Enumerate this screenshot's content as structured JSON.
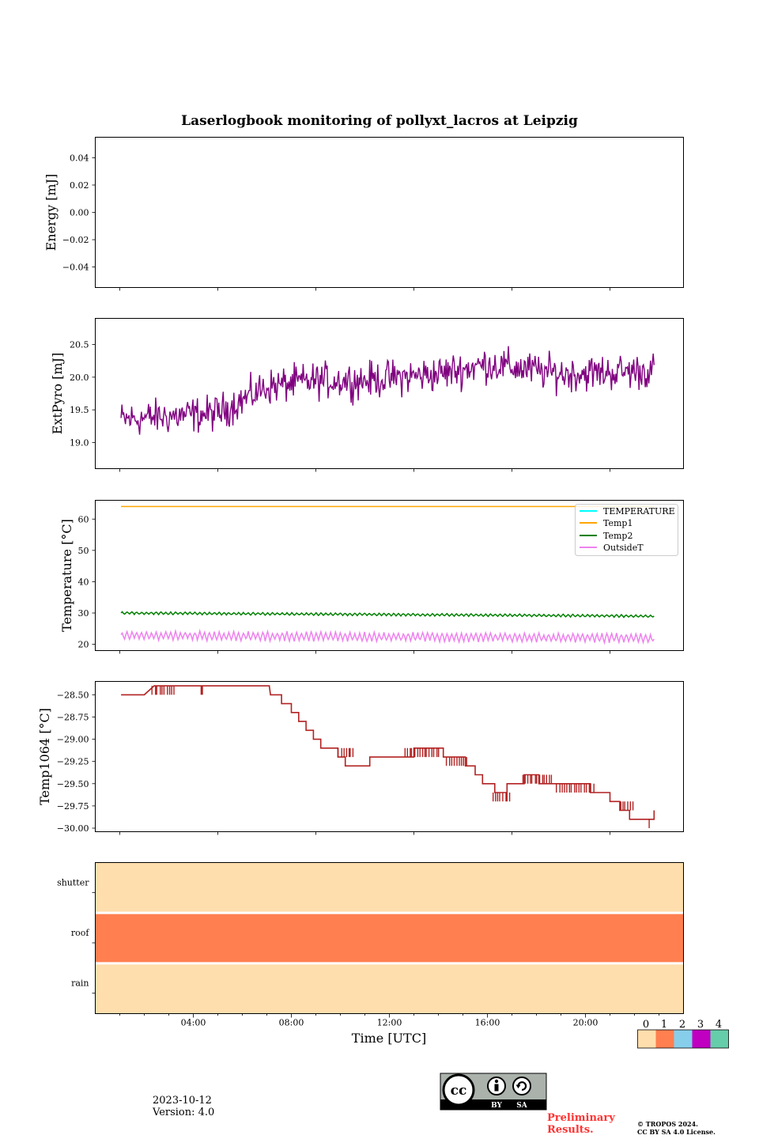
{
  "figure_title": "Laserlogbook monitoring of pollyxt_lacros at Leipzig",
  "footer": {
    "date": "2023-10-12",
    "version": "Version: 4.0",
    "preliminary_line1": "Preliminary",
    "preliminary_line2": "Results.",
    "copyright_line1": "© TROPOS 2024.",
    "copyright_line2": "CC BY SA 4.0 License.",
    "license_badge": {
      "cc": "cc",
      "by": "BY",
      "sa": "SA"
    }
  },
  "colors": {
    "extpyro": "#800080",
    "temperature": "#00ffff",
    "temp1": "#ffa500",
    "temp2": "#008000",
    "outsideT": "#ee82ee",
    "temp1064": "#b22222",
    "status": [
      "#ffdead",
      "#ff7f50",
      "#87ceeb",
      "#c000c0",
      "#66cdaa"
    ],
    "prelim": "#ff3333"
  },
  "chart_data": [
    {
      "type": "line",
      "panel": "energy",
      "ylabel": "Energy [mJ]",
      "ylim": [
        -0.055,
        0.055
      ],
      "yticks": [
        -0.04,
        -0.02,
        0.0,
        0.02,
        0.04
      ],
      "ytick_labels": [
        "−0.04",
        "−0.02",
        "0.00",
        "0.02",
        "0.04"
      ],
      "series": []
    },
    {
      "type": "line",
      "panel": "extpyro",
      "ylabel": "ExtPyro [mJ]",
      "xlim": [
        0.0,
        24.0
      ],
      "ylim": [
        18.6,
        20.9
      ],
      "yticks": [
        19.0,
        19.5,
        20.0,
        20.5
      ],
      "ytick_labels": [
        "19.0",
        "19.5",
        "20.0",
        "20.5"
      ],
      "series": [
        {
          "x_range": [
            1.05,
            22.8
          ],
          "trend": [
            [
              1.05,
              19.35
            ],
            [
              3.0,
              19.4
            ],
            [
              5.0,
              19.45
            ],
            [
              7.0,
              19.85
            ],
            [
              9.0,
              19.95
            ],
            [
              11.0,
              19.95
            ],
            [
              14.0,
              20.05
            ],
            [
              16.0,
              20.2
            ],
            [
              19.0,
              20.05
            ],
            [
              22.8,
              20.1
            ]
          ],
          "noise_amplitude": 0.3,
          "points": 600
        }
      ]
    },
    {
      "type": "line",
      "panel": "temperature",
      "ylabel": "Temperature [°C]",
      "xlim": [
        0.0,
        24.0
      ],
      "ylim": [
        18,
        66
      ],
      "yticks": [
        20,
        30,
        40,
        50,
        60
      ],
      "ytick_labels": [
        "20",
        "30",
        "40",
        "50",
        "60"
      ],
      "legend_position": "upper-right",
      "series": [
        {
          "name": "TEMPERATURE",
          "x": [],
          "y": []
        },
        {
          "name": "Temp1",
          "x": [
            1.05,
            22.8
          ],
          "y": [
            64.0,
            64.0
          ]
        },
        {
          "name": "Temp2",
          "x_range": [
            1.05,
            22.8
          ],
          "start": 30.0,
          "end": 29.0,
          "amplitude": 0.35,
          "cycles": 110
        },
        {
          "name": "OutsideT",
          "x_range": [
            1.05,
            22.8
          ],
          "start": 22.8,
          "end": 22.0,
          "amplitude": 1.2,
          "cycles": 110
        }
      ]
    },
    {
      "type": "line",
      "panel": "temp1064",
      "ylabel": "Temp1064 [°C]",
      "xlim": [
        0.0,
        24.0
      ],
      "ylim": [
        -30.04,
        -28.35
      ],
      "yticks": [
        -30.0,
        -29.75,
        -29.5,
        -29.25,
        -29.0,
        -28.75,
        -28.5
      ],
      "ytick_labels": [
        "−30.00",
        "−29.75",
        "−29.50",
        "−29.25",
        "−29.00",
        "−28.75",
        "−28.50"
      ],
      "series": [
        {
          "steps": [
            [
              1.05,
              -28.5
            ],
            [
              2.0,
              -28.5
            ],
            [
              2.4,
              -28.4
            ],
            [
              3.0,
              -28.4
            ],
            [
              4.0,
              -28.4
            ],
            [
              5.0,
              -28.4
            ],
            [
              6.0,
              -28.4
            ],
            [
              7.1,
              -28.4
            ],
            [
              7.15,
              -28.5
            ],
            [
              7.6,
              -28.5
            ],
            [
              7.6,
              -28.6
            ],
            [
              8.0,
              -28.6
            ],
            [
              8.0,
              -28.7
            ],
            [
              8.3,
              -28.7
            ],
            [
              8.3,
              -28.8
            ],
            [
              8.6,
              -28.8
            ],
            [
              8.6,
              -28.9
            ],
            [
              8.9,
              -28.9
            ],
            [
              8.9,
              -29.0
            ],
            [
              9.2,
              -29.0
            ],
            [
              9.2,
              -29.1
            ],
            [
              9.9,
              -29.1
            ],
            [
              9.9,
              -29.2
            ],
            [
              10.2,
              -29.2
            ],
            [
              10.2,
              -29.3
            ],
            [
              11.2,
              -29.3
            ],
            [
              11.2,
              -29.2
            ],
            [
              13.0,
              -29.2
            ],
            [
              13.0,
              -29.1
            ],
            [
              14.2,
              -29.1
            ],
            [
              14.2,
              -29.2
            ],
            [
              15.1,
              -29.2
            ],
            [
              15.1,
              -29.3
            ],
            [
              15.5,
              -29.3
            ],
            [
              15.5,
              -29.4
            ],
            [
              15.8,
              -29.4
            ],
            [
              15.8,
              -29.5
            ],
            [
              16.3,
              -29.5
            ],
            [
              16.3,
              -29.6
            ],
            [
              16.8,
              -29.6
            ],
            [
              16.8,
              -29.5
            ],
            [
              17.5,
              -29.5
            ],
            [
              17.5,
              -29.4
            ],
            [
              18.1,
              -29.4
            ],
            [
              18.1,
              -29.5
            ],
            [
              20.2,
              -29.5
            ],
            [
              20.2,
              -29.6
            ],
            [
              21.0,
              -29.6
            ],
            [
              21.0,
              -29.7
            ],
            [
              21.4,
              -29.7
            ],
            [
              21.4,
              -29.8
            ],
            [
              21.8,
              -29.8
            ],
            [
              21.8,
              -29.9
            ],
            [
              22.8,
              -29.9
            ],
            [
              22.8,
              -29.8
            ]
          ],
          "flicker": [
            [
              2.3,
              3.3,
              -28.4,
              -28.5
            ],
            [
              4.3,
              4.4,
              -28.4,
              -28.5
            ],
            [
              9.9,
              10.6,
              -29.2,
              -29.1
            ],
            [
              12.6,
              14.1,
              -29.1,
              -29.2
            ],
            [
              14.3,
              15.2,
              -29.2,
              -29.3
            ],
            [
              16.2,
              17.0,
              -29.6,
              -29.7
            ],
            [
              17.4,
              18.7,
              -29.5,
              -29.4
            ],
            [
              18.8,
              20.4,
              -29.5,
              -29.6
            ],
            [
              21.4,
              22.0,
              -29.8,
              -29.7
            ]
          ],
          "min_spike": [
            22.6,
            -30.0
          ]
        }
      ]
    },
    {
      "type": "heatmap",
      "panel": "status",
      "rows": [
        "shutter",
        "roof",
        "rain"
      ],
      "values": [
        0,
        1,
        0
      ],
      "xlim": [
        0.0,
        24.0
      ],
      "xticks_hours": [
        4,
        8,
        12,
        16,
        20
      ],
      "xtick_labels": [
        "04:00",
        "08:00",
        "12:00",
        "16:00",
        "20:00"
      ],
      "xlabel": "Time [UTC]",
      "colorbar_ticks": [
        "0",
        "1",
        "2",
        "3",
        "4"
      ]
    }
  ]
}
